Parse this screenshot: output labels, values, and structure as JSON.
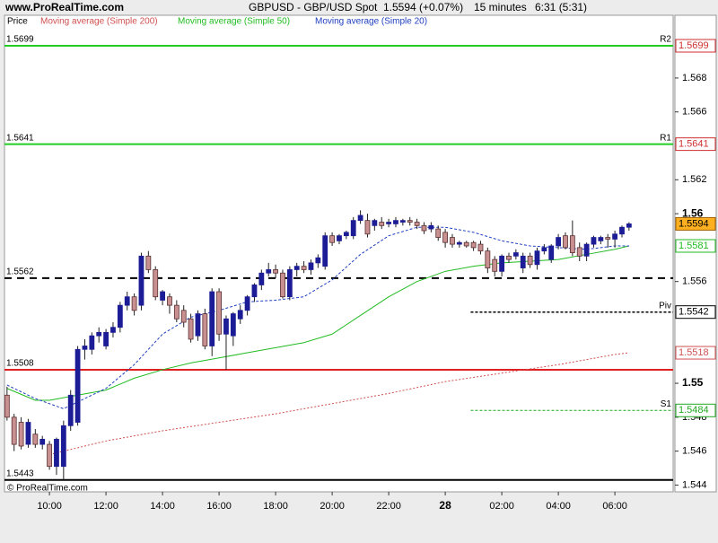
{
  "chart_data": {
    "type": "candlestick",
    "site": "www.ProRealTime.com",
    "title": "GBPUSD - GBP/USD Spot",
    "last_text": "1.5594 (+0.07%)",
    "interval": "15 minutes",
    "time_text": "6:31 (5:31)",
    "pane_label": "Price",
    "copyright": "© ProRealTime.com",
    "up_color": "#1c1c96",
    "down_color": "#c89090",
    "last_box_color": "#ffb020",
    "xlim": [
      8.41,
      32.06
    ],
    "ylim": [
      1.5436,
      1.5717
    ],
    "xticks": [
      {
        "value": 10,
        "label": "10:00"
      },
      {
        "value": 12,
        "label": "12:00"
      },
      {
        "value": 14,
        "label": "14:00"
      },
      {
        "value": 16,
        "label": "16:00"
      },
      {
        "value": 18,
        "label": "18:00"
      },
      {
        "value": 20,
        "label": "20:00"
      },
      {
        "value": 22,
        "label": "22:00"
      },
      {
        "value": 24,
        "label": "28"
      },
      {
        "value": 26,
        "label": "02:00"
      },
      {
        "value": 28,
        "label": "04:00"
      },
      {
        "value": 30,
        "label": "06:00"
      }
    ],
    "yticks": [
      1.544,
      1.546,
      1.548,
      1.55,
      1.556,
      1.56,
      1.562,
      1.566,
      1.568
    ],
    "x": [
      8.5,
      8.75,
      9,
      9.25,
      9.5,
      9.75,
      10,
      10.25,
      10.5,
      10.75,
      11,
      11.25,
      11.5,
      11.75,
      12,
      12.25,
      12.5,
      12.75,
      13,
      13.25,
      13.5,
      13.75,
      14,
      14.25,
      14.5,
      14.75,
      15,
      15.25,
      15.5,
      15.75,
      16,
      16.25,
      16.5,
      16.75,
      17,
      17.25,
      17.5,
      17.75,
      18,
      18.25,
      18.5,
      18.75,
      19,
      19.25,
      19.5,
      19.75,
      20,
      20.25,
      20.5,
      20.75,
      21,
      21.25,
      21.5,
      21.75,
      22,
      22.25,
      22.5,
      22.75,
      23,
      23.25,
      23.5,
      23.75,
      24,
      24.25,
      24.5,
      24.75,
      25,
      25.25,
      25.5,
      25.75,
      26,
      26.25,
      26.5,
      26.75,
      27,
      27.25,
      27.5,
      27.75,
      28,
      28.25,
      28.5,
      28.75,
      29,
      29.25,
      29.5,
      29.75,
      30,
      30.25,
      30.5
    ],
    "open": [
      1.5493,
      1.548,
      1.5477,
      1.5464,
      1.547,
      1.5464,
      1.5464,
      1.5451,
      1.5451,
      1.5475,
      1.5477,
      1.552,
      1.552,
      1.5528,
      1.5522,
      1.553,
      1.5533,
      1.5546,
      1.5551,
      1.5546,
      1.5575,
      1.5567,
      1.5549,
      1.5551,
      1.5546,
      1.5543,
      1.5538,
      1.5528,
      1.5541,
      1.5522,
      1.5554,
      1.5529,
      1.5528,
      1.5538,
      1.5543,
      1.5551,
      1.5558,
      1.5565,
      1.5567,
      1.5565,
      1.5551,
      1.5567,
      1.5569,
      1.5567,
      1.5571,
      1.5569,
      1.5587,
      1.5584,
      1.5587,
      1.5587,
      1.5596,
      1.5596,
      1.5593,
      1.5595,
      1.5594,
      1.5594,
      1.5595,
      1.5596,
      1.5595,
      1.5593,
      1.5591,
      1.5591,
      1.5589,
      1.5586,
      1.5582,
      1.5583,
      1.5583,
      1.5582,
      1.5578,
      1.5573,
      1.5566,
      1.5575,
      1.5575,
      1.5568,
      1.5575,
      1.557,
      1.5578,
      1.5573,
      1.5581,
      1.5587,
      1.5587,
      1.558,
      1.5575,
      1.5582,
      1.5584,
      1.5586,
      1.5585,
      1.5588,
      1.5592
    ],
    "high": [
      1.5498,
      1.5482,
      1.548,
      1.5479,
      1.5473,
      1.5469,
      1.5466,
      1.5468,
      1.5478,
      1.5496,
      1.5522,
      1.5526,
      1.553,
      1.5533,
      1.5532,
      1.5536,
      1.5548,
      1.5554,
      1.5553,
      1.5577,
      1.5578,
      1.5569,
      1.5555,
      1.5553,
      1.5549,
      1.5546,
      1.5541,
      1.5543,
      1.5544,
      1.5556,
      1.5556,
      1.554,
      1.5542,
      1.5546,
      1.5552,
      1.5559,
      1.5567,
      1.5571,
      1.557,
      1.5567,
      1.5569,
      1.5571,
      1.5572,
      1.5573,
      1.5576,
      1.5589,
      1.5589,
      1.5588,
      1.559,
      1.5598,
      1.5602,
      1.56,
      1.5597,
      1.5598,
      1.5597,
      1.5598,
      1.5597,
      1.5598,
      1.5597,
      1.5595,
      1.5595,
      1.5593,
      1.5591,
      1.5588,
      1.5584,
      1.5584,
      1.5584,
      1.5584,
      1.558,
      1.5575,
      1.5576,
      1.5577,
      1.5579,
      1.5577,
      1.5577,
      1.558,
      1.5582,
      1.5582,
      1.5588,
      1.5589,
      1.5596,
      1.5583,
      1.5583,
      1.5587,
      1.5587,
      1.5588,
      1.559,
      1.5593,
      1.5595
    ],
    "low": [
      1.5478,
      1.546,
      1.5461,
      1.5462,
      1.5462,
      1.5461,
      1.5449,
      1.5446,
      1.5443,
      1.5472,
      1.5475,
      1.5514,
      1.5517,
      1.5524,
      1.552,
      1.5527,
      1.553,
      1.5543,
      1.554,
      1.5543,
      1.5565,
      1.5549,
      1.5546,
      1.5541,
      1.5536,
      1.5533,
      1.5524,
      1.5525,
      1.552,
      1.5516,
      1.5525,
      1.5508,
      1.5522,
      1.5535,
      1.554,
      1.5548,
      1.5555,
      1.5563,
      1.5562,
      1.555,
      1.5549,
      1.5563,
      1.5565,
      1.5564,
      1.5568,
      1.5567,
      1.5581,
      1.5582,
      1.5585,
      1.5585,
      1.5594,
      1.5586,
      1.559,
      1.5591,
      1.5592,
      1.5592,
      1.5593,
      1.5593,
      1.5591,
      1.5588,
      1.5589,
      1.5584,
      1.558,
      1.558,
      1.558,
      1.558,
      1.5578,
      1.5576,
      1.5565,
      1.5563,
      1.5563,
      1.5571,
      1.5573,
      1.5565,
      1.5568,
      1.5567,
      1.5576,
      1.5571,
      1.5579,
      1.5579,
      1.5575,
      1.5572,
      1.5572,
      1.558,
      1.5582,
      1.558,
      1.558,
      1.5586,
      1.559
    ],
    "close": [
      1.548,
      1.5464,
      1.5463,
      1.5477,
      1.5464,
      1.5467,
      1.5451,
      1.5467,
      1.5475,
      1.5493,
      1.552,
      1.5522,
      1.5528,
      1.553,
      1.553,
      1.5533,
      1.5546,
      1.5551,
      1.5543,
      1.5575,
      1.5567,
      1.5551,
      1.5554,
      1.5546,
      1.5538,
      1.5536,
      1.5526,
      1.5541,
      1.5522,
      1.5554,
      1.5529,
      1.5538,
      1.5541,
      1.5543,
      1.5551,
      1.5558,
      1.5565,
      1.5567,
      1.5565,
      1.5551,
      1.5567,
      1.5569,
      1.5567,
      1.5571,
      1.5574,
      1.5587,
      1.5583,
      1.5587,
      1.5589,
      1.5596,
      1.5599,
      1.5588,
      1.5596,
      1.5593,
      1.5595,
      1.5596,
      1.5596,
      1.5595,
      1.5593,
      1.559,
      1.5593,
      1.5586,
      1.5583,
      1.5582,
      1.5583,
      1.5581,
      1.558,
      1.5578,
      1.5568,
      1.5566,
      1.5575,
      1.5573,
      1.5577,
      1.5575,
      1.557,
      1.5578,
      1.558,
      1.5581,
      1.5586,
      1.558,
      1.5577,
      1.5575,
      1.5582,
      1.5586,
      1.5586,
      1.5585,
      1.5588,
      1.5592,
      1.5594
    ],
    "series": [
      {
        "name": "Moving average (Simple 200)",
        "color": "#d05050",
        "dash": "2,2",
        "box": true,
        "x": [
          10,
          12,
          14,
          16,
          18,
          20,
          22,
          24,
          26,
          28,
          30,
          30.5
        ],
        "values": [
          1.5458,
          1.5466,
          1.5472,
          1.5477,
          1.5482,
          1.5488,
          1.5494,
          1.5501,
          1.5506,
          1.5511,
          1.5517,
          1.5518
        ]
      },
      {
        "name": "Moving average (Simple 50)",
        "color": "#22bb22",
        "dash": "none",
        "box": true,
        "x": [
          8.5,
          9.5,
          10,
          11,
          12,
          13,
          14,
          15,
          16,
          17,
          18,
          19,
          20,
          21,
          22,
          23,
          24,
          25,
          26,
          27,
          28,
          29,
          30,
          30.5
        ],
        "values": [
          1.5497,
          1.549,
          1.549,
          1.5493,
          1.5496,
          1.5503,
          1.5508,
          1.5512,
          1.5515,
          1.5518,
          1.5521,
          1.5524,
          1.5529,
          1.554,
          1.5551,
          1.556,
          1.5566,
          1.5569,
          1.5571,
          1.5572,
          1.5573,
          1.5576,
          1.5579,
          1.5581
        ]
      },
      {
        "name": "Moving average (Simple 20)",
        "color": "#2040c0",
        "dash": "3,2",
        "box": false,
        "x": [
          8.5,
          9,
          9.5,
          10,
          10.5,
          11,
          12,
          13,
          14,
          15,
          16,
          17,
          18,
          19,
          20,
          21,
          22,
          23,
          24,
          25,
          26,
          27,
          28,
          29,
          30,
          30.5
        ],
        "values": [
          1.5499,
          1.5495,
          1.5491,
          1.5488,
          1.5485,
          1.5489,
          1.5497,
          1.5511,
          1.5529,
          1.5539,
          1.5543,
          1.5548,
          1.5549,
          1.5551,
          1.5561,
          1.5576,
          1.5587,
          1.5592,
          1.5592,
          1.5589,
          1.5584,
          1.5581,
          1.558,
          1.5579,
          1.5581,
          1.5581
        ]
      }
    ],
    "levels": [
      {
        "name": "R2",
        "value": 1.5699,
        "color": "#22cc22",
        "dash": "none",
        "width": 2,
        "label_color": "#d03030"
      },
      {
        "name": "R1",
        "value": 1.5641,
        "color": "#22cc22",
        "dash": "none",
        "width": 2,
        "label_color": "#d03030"
      },
      {
        "value": 1.5562,
        "color": "#000000",
        "dash": "8,6",
        "width": 2
      },
      {
        "name": "Piv",
        "value": 1.5542,
        "color": "#000000",
        "dash": "3,2",
        "width": 1.5,
        "start": 24.9,
        "label_color": "#000000"
      },
      {
        "value": 1.5508,
        "color": "#e02020",
        "dash": "none",
        "width": 2
      },
      {
        "name": "S1",
        "value": 1.5484,
        "color": "#22aa22",
        "dash": "3,2",
        "width": 1,
        "start": 24.9,
        "label_color": "#22aa22"
      },
      {
        "value": 1.5443,
        "color": "#000000",
        "dash": "none",
        "width": 2
      }
    ]
  }
}
